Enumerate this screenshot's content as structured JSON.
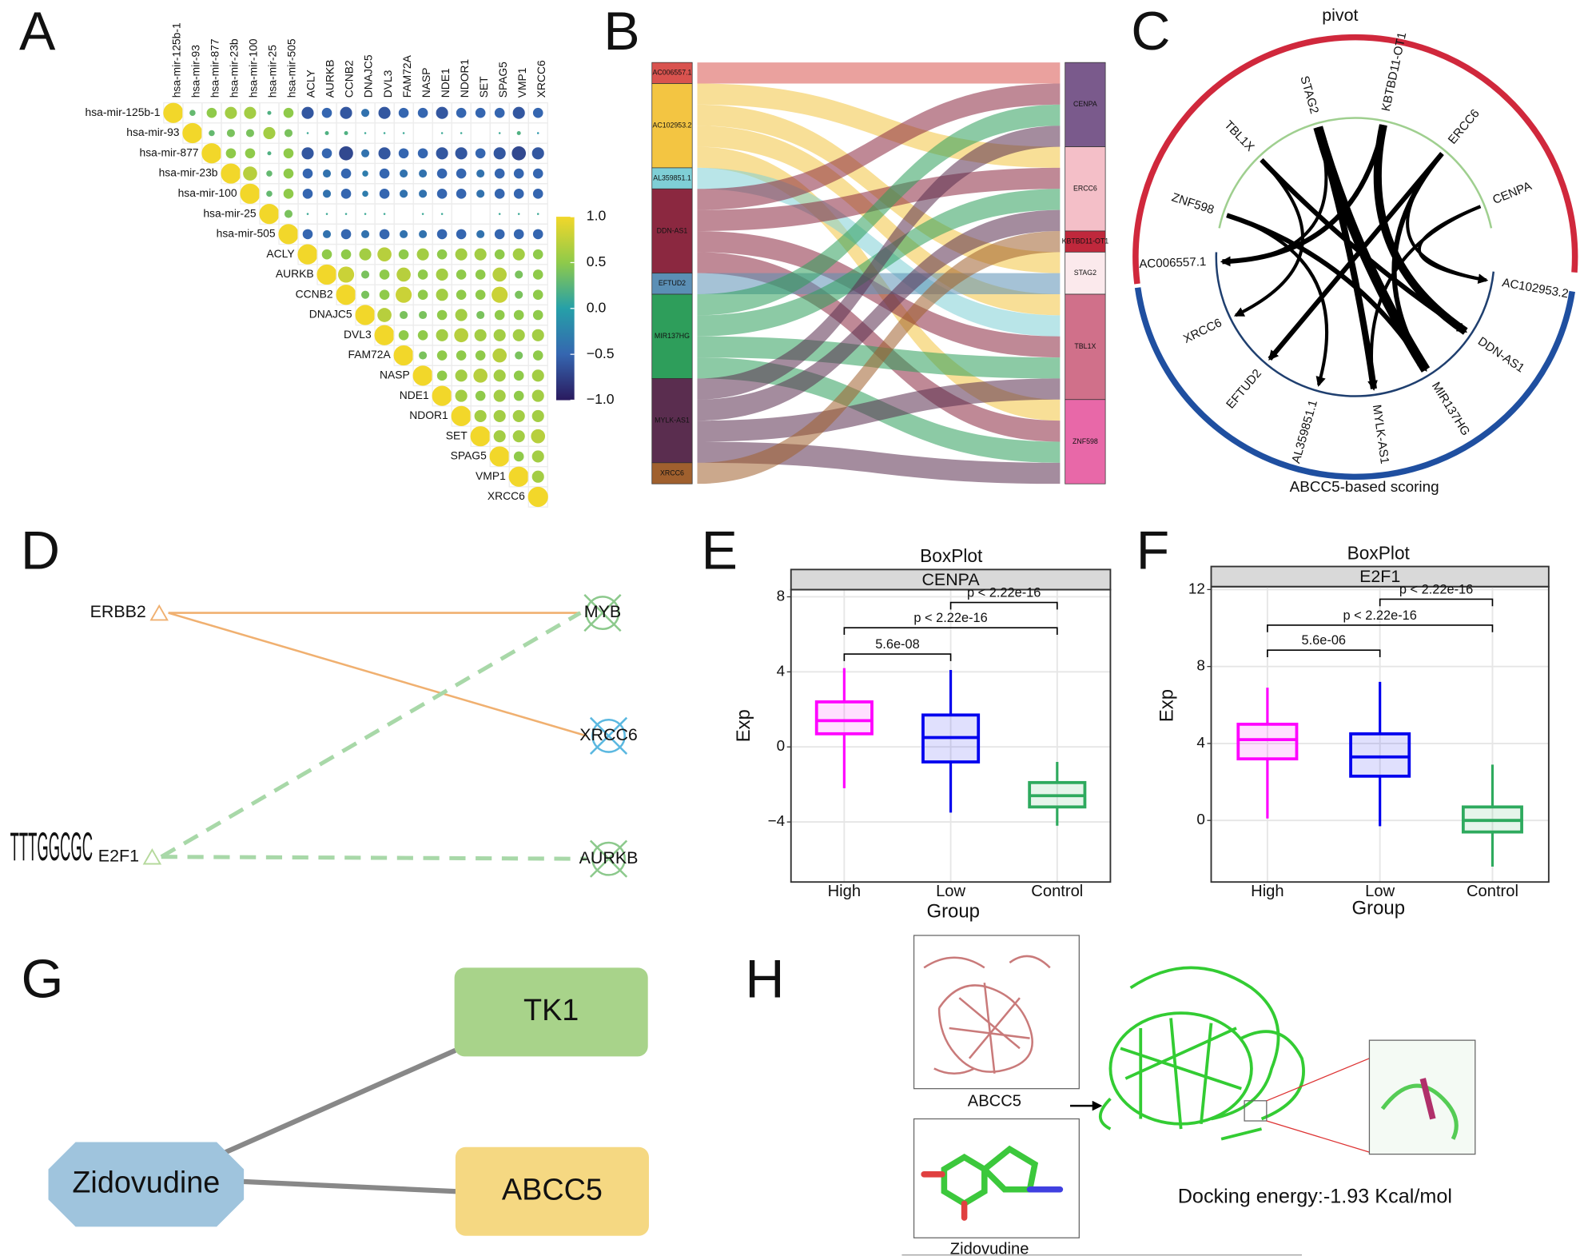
{
  "panel_labels": [
    "A",
    "B",
    "C",
    "D",
    "E",
    "F",
    "G",
    "H"
  ],
  "correlation": {
    "labels": [
      "hsa-mir-125b-1",
      "hsa-mir-93",
      "hsa-mir-877",
      "hsa-mir-23b",
      "hsa-mir-100",
      "hsa-mir-25",
      "hsa-mir-505",
      "ACLY",
      "AURKB",
      "CCNB2",
      "DNAJC5",
      "DVL3",
      "FAM72A",
      "NASP",
      "NDE1",
      "NDOR1",
      "SET",
      "SPAG5",
      "VMP1",
      "XRCC6"
    ],
    "matrix": [
      [
        1,
        0.3,
        0.5,
        0.6,
        0.6,
        0.2,
        0.5,
        -0.6,
        -0.5,
        -0.6,
        -0.4,
        -0.6,
        -0.5,
        -0.5,
        -0.6,
        -0.5,
        -0.5,
        -0.5,
        -0.6,
        -0.5
      ],
      [
        1,
        0.3,
        0.4,
        0.4,
        0.6,
        0.4,
        0.1,
        0.2,
        0.2,
        0.1,
        0.1,
        0.1,
        0.0,
        0.1,
        0.1,
        0.0,
        0.1,
        0.2,
        -0.1
      ],
      [
        1,
        0.5,
        0.5,
        0.2,
        0.5,
        -0.6,
        -0.5,
        -0.7,
        -0.4,
        -0.6,
        -0.5,
        -0.5,
        -0.6,
        -0.6,
        -0.5,
        -0.6,
        -0.7,
        -0.6
      ],
      [
        1,
        0.7,
        0.3,
        0.5,
        -0.5,
        -0.4,
        -0.5,
        -0.3,
        -0.5,
        -0.4,
        -0.4,
        -0.5,
        -0.5,
        -0.4,
        -0.5,
        -0.5,
        -0.5
      ],
      [
        1,
        0.3,
        0.5,
        -0.5,
        -0.4,
        -0.5,
        -0.3,
        -0.5,
        -0.4,
        -0.4,
        -0.5,
        -0.5,
        -0.4,
        -0.5,
        -0.5,
        -0.5
      ],
      [
        1,
        0.4,
        0.1,
        0.1,
        0.1,
        0.1,
        0.1,
        0.0,
        0.1,
        0.1,
        0.0,
        0.0,
        0.1,
        0.1,
        0.1
      ],
      [
        1,
        -0.5,
        -0.4,
        -0.5,
        -0.4,
        -0.5,
        -0.4,
        -0.4,
        -0.5,
        -0.5,
        -0.4,
        -0.5,
        -0.5,
        -0.5
      ],
      [
        1,
        0.5,
        0.5,
        0.6,
        0.7,
        0.5,
        0.6,
        0.5,
        0.6,
        0.6,
        0.5,
        0.6,
        0.5
      ],
      [
        1,
        0.8,
        0.4,
        0.5,
        0.7,
        0.5,
        0.6,
        0.5,
        0.5,
        0.7,
        0.4,
        0.5
      ],
      [
        1,
        0.4,
        0.5,
        0.8,
        0.5,
        0.6,
        0.5,
        0.5,
        0.8,
        0.4,
        0.5
      ],
      [
        1,
        0.7,
        0.4,
        0.4,
        0.5,
        0.6,
        0.4,
        0.5,
        0.5,
        0.5
      ],
      [
        1,
        0.5,
        0.5,
        0.6,
        0.7,
        0.6,
        0.6,
        0.6,
        0.6
      ],
      [
        1,
        0.4,
        0.5,
        0.5,
        0.5,
        0.7,
        0.4,
        0.5
      ],
      [
        1,
        0.5,
        0.6,
        0.7,
        0.6,
        0.5,
        0.6
      ],
      [
        1,
        0.6,
        0.5,
        0.6,
        0.5,
        0.6
      ],
      [
        1,
        0.6,
        0.6,
        0.6,
        0.6
      ],
      [
        1,
        0.6,
        0.6,
        0.7
      ],
      [
        1,
        0.5,
        0.6
      ],
      [
        1,
        0.6
      ],
      [
        1
      ]
    ],
    "colorscale": [
      [
        -1,
        "#2a1a5e"
      ],
      [
        -0.5,
        "#3566b0"
      ],
      [
        0,
        "#26a0a8"
      ],
      [
        0.5,
        "#8fca4a"
      ],
      [
        1,
        "#f2d72a"
      ]
    ],
    "colorbar_ticks": [
      {
        "value": 1,
        "label": "1.0"
      },
      {
        "value": 0.5,
        "label": "0.5"
      },
      {
        "value": 0,
        "label": "0.0"
      },
      {
        "value": -0.5,
        "label": "−0.5"
      },
      {
        "value": -1,
        "label": "−1.0"
      }
    ]
  },
  "sankey": {
    "left": [
      {
        "name": "AC006557.1",
        "color": "#d9534f"
      },
      {
        "name": "AC102953.2",
        "color": "#f3c542"
      },
      {
        "name": "AL359851.1",
        "color": "#7fcfd6"
      },
      {
        "name": "DDN-AS1",
        "color": "#8b2840"
      },
      {
        "name": "EFTUD2",
        "color": "#5b8fb5"
      },
      {
        "name": "MIR137HG",
        "color": "#2e9e5b"
      },
      {
        "name": "MYLK-AS1",
        "color": "#5a2d4f"
      },
      {
        "name": "XRCC6",
        "color": "#a0602e"
      }
    ],
    "right": [
      {
        "name": "CENPA",
        "color": "#7a5a8c"
      },
      {
        "name": "ERCC6",
        "color": "#f4bfc8"
      },
      {
        "name": "KBTBD11-OT1",
        "color": "#c0283c"
      },
      {
        "name": "STAG2",
        "color": "#fbe9ec"
      },
      {
        "name": "TBL1X",
        "color": "#d0708a"
      },
      {
        "name": "ZNF598",
        "color": "#e868a8"
      }
    ],
    "links": [
      [
        0,
        0
      ],
      [
        1,
        1
      ],
      [
        1,
        3
      ],
      [
        1,
        4
      ],
      [
        1,
        5
      ],
      [
        2,
        4
      ],
      [
        3,
        0
      ],
      [
        3,
        1
      ],
      [
        3,
        4
      ],
      [
        3,
        5
      ],
      [
        4,
        3
      ],
      [
        5,
        0
      ],
      [
        5,
        1
      ],
      [
        5,
        4
      ],
      [
        5,
        5
      ],
      [
        6,
        0
      ],
      [
        6,
        1
      ],
      [
        6,
        4
      ],
      [
        6,
        5
      ],
      [
        7,
        2
      ]
    ]
  },
  "chord": {
    "top_title": "pivot",
    "bottom_title": "ABCC5-based scoring",
    "top_color": "#d0283c",
    "bottom_color": "#1f4fa0",
    "top": [
      "ZNF598",
      "TBL1X",
      "STAG2",
      "KBTBD11-OT1",
      "ERCC6",
      "CENPA"
    ],
    "bottom": [
      "AC102953.2",
      "DDN-AS1",
      "MIR137HG",
      "MYLK-AS1",
      "AL359851.1",
      "EFTUD2",
      "XRCC6",
      "AC006557.1"
    ],
    "links": [
      [
        2,
        2,
        6
      ],
      [
        2,
        3,
        4
      ],
      [
        3,
        1,
        5
      ],
      [
        3,
        7,
        3
      ],
      [
        4,
        0,
        2
      ],
      [
        4,
        5,
        3
      ],
      [
        1,
        1,
        3
      ],
      [
        1,
        6,
        2
      ],
      [
        0,
        4,
        2
      ],
      [
        0,
        2,
        3
      ],
      [
        5,
        0,
        2
      ],
      [
        5,
        3,
        2
      ],
      [
        2,
        7,
        2
      ],
      [
        4,
        2,
        3
      ]
    ]
  },
  "regulation": {
    "logo": "TTTGGCGC",
    "nodes": [
      {
        "label": "ERBB2",
        "color": "#f0b070"
      },
      {
        "label": "MYB",
        "color": "#8cc98c"
      },
      {
        "label": "XRCC6",
        "color": "#5bb8e0"
      },
      {
        "label": "E2F1",
        "color": "#b5d99c"
      },
      {
        "label": "AURKB",
        "color": "#8cc98c"
      }
    ],
    "edges": [
      [
        0,
        1,
        "solid"
      ],
      [
        0,
        2,
        "solid"
      ],
      [
        3,
        1,
        "dashed"
      ],
      [
        3,
        4,
        "dashed"
      ]
    ]
  },
  "boxplots": [
    {
      "title": "BoxPlot",
      "strip": "CENPA",
      "xlabel": "Group",
      "ylabel": "Exp",
      "categories": [
        "High",
        "Low",
        "Control"
      ],
      "colors": [
        "#ff00ff",
        "#0000ee",
        "#2eaa5e"
      ],
      "stats": [
        [
          -2.2,
          0.7,
          1.4,
          2.4,
          4.2
        ],
        [
          -3.5,
          -0.8,
          0.5,
          1.7,
          4.1
        ],
        [
          -4.2,
          -3.2,
          -2.6,
          -1.9,
          -0.8
        ]
      ],
      "ylim": [
        -7.2,
        8.38
      ],
      "yticks": [
        {
          "value": -4,
          "label": "−4"
        },
        0,
        4,
        8
      ],
      "comparisons": [
        {
          "pair": [
            0,
            1
          ],
          "y": 4.95,
          "label": "5.6e-08"
        },
        {
          "pair": [
            0,
            2
          ],
          "y": 6.35,
          "label": "p < 2.22e-16"
        },
        {
          "pair": [
            1,
            2
          ],
          "y": 7.7,
          "label": "p < 2.22e-16"
        }
      ]
    },
    {
      "title": "BoxPlot",
      "strip": "E2F1",
      "xlabel": "Group",
      "ylabel": "Exp",
      "categories": [
        "High",
        "Low",
        "Control"
      ],
      "colors": [
        "#ff00ff",
        "#0000ee",
        "#2eaa5e"
      ],
      "stats": [
        [
          0.1,
          3.2,
          4.2,
          5.0,
          6.9
        ],
        [
          -0.3,
          2.3,
          3.3,
          4.5,
          7.2
        ],
        [
          -2.4,
          -0.6,
          0,
          0.7,
          2.9
        ]
      ],
      "ylim": [
        -3.2,
        12.15
      ],
      "yticks": [
        0,
        4,
        8,
        12
      ],
      "comparisons": [
        {
          "pair": [
            0,
            1
          ],
          "y": 8.85,
          "label": "5.6e-06"
        },
        {
          "pair": [
            0,
            2
          ],
          "y": 10.15,
          "label": "p < 2.22e-16"
        },
        {
          "pair": [
            1,
            2
          ],
          "y": 11.5,
          "label": "p < 2.22e-16"
        }
      ]
    }
  ],
  "drug_network": {
    "nodes": [
      {
        "label": "Zidovudine",
        "color": "#9fc4dd"
      },
      {
        "label": "TK1",
        "color": "#a8d38a"
      },
      {
        "label": "ABCC5",
        "color": "#f5d882"
      }
    ],
    "edges": [
      [
        0,
        1
      ],
      [
        0,
        2
      ]
    ]
  },
  "docking": {
    "protein_label": "ABCC5",
    "ligand_label": "Zidovudine",
    "energy": "Docking energy:-1.93 Kcal/mol"
  }
}
